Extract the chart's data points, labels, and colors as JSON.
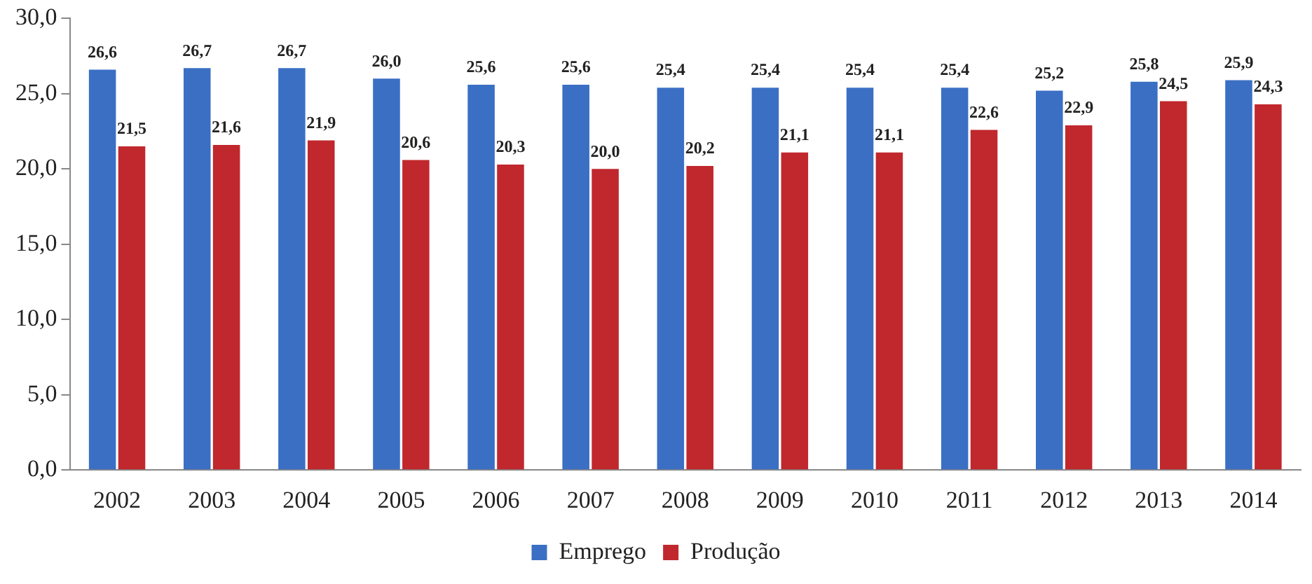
{
  "chart_data": {
    "type": "bar",
    "categories": [
      "2002",
      "2003",
      "2004",
      "2005",
      "2006",
      "2007",
      "2008",
      "2009",
      "2010",
      "2011",
      "2012",
      "2013",
      "2014"
    ],
    "series": [
      {
        "name": "Emprego",
        "color": "#3a6fc4",
        "values": [
          26.6,
          26.7,
          26.7,
          26.0,
          25.6,
          25.6,
          25.4,
          25.4,
          25.4,
          25.4,
          25.2,
          25.8,
          25.9
        ],
        "value_labels": [
          "26,6",
          "26,7",
          "26,7",
          "26,0",
          "25,6",
          "25,6",
          "25,4",
          "25,4",
          "25,4",
          "25,4",
          "25,2",
          "25,8",
          "25,9"
        ]
      },
      {
        "name": "Produção",
        "color": "#c0282d",
        "values": [
          21.5,
          21.6,
          21.9,
          20.6,
          20.3,
          20.0,
          20.2,
          21.1,
          21.1,
          22.6,
          22.9,
          24.5,
          24.3
        ],
        "value_labels": [
          "21,5",
          "21,6",
          "21,9",
          "20,6",
          "20,3",
          "20,0",
          "20,2",
          "21,1",
          "21,1",
          "22,6",
          "22,9",
          "24,5",
          "24,3"
        ]
      }
    ],
    "ylim": [
      0,
      30
    ],
    "yticks": [
      {
        "value": 0,
        "label": "0,0"
      },
      {
        "value": 5,
        "label": "5,0"
      },
      {
        "value": 10,
        "label": "10,0"
      },
      {
        "value": 15,
        "label": "15,0"
      },
      {
        "value": 20,
        "label": "20,0"
      },
      {
        "value": 25,
        "label": "25,0"
      },
      {
        "value": 30,
        "label": "30,0"
      }
    ],
    "grid": false,
    "legend": "bottom"
  }
}
